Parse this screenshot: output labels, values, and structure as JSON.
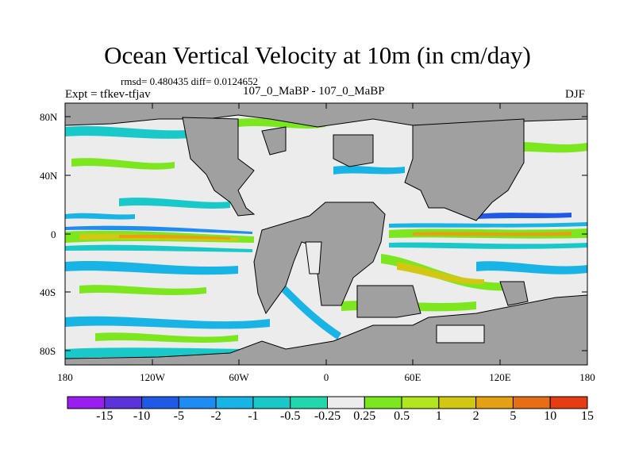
{
  "title": "Ocean Vertical Velocity at 10m (in cm/day)",
  "stats_line": "rmsd= 0.480435 diff= 0.0124652",
  "experiment_line": "Expt = tfkev-tfjav",
  "diff_label": "107_0_MaBP - 107_0_MaBP",
  "season": "DJF",
  "lat_ticks": [
    "80N",
    "40N",
    "0",
    "40S",
    "80S"
  ],
  "lon_ticks": [
    "180",
    "120W",
    "60W",
    "0",
    "60E",
    "120E",
    "180"
  ],
  "colorbar": {
    "labels": [
      "-15",
      "-10",
      "-5",
      "-2",
      "-1",
      "-0.5",
      "-0.25",
      "0.25",
      "0.5",
      "1",
      "2",
      "5",
      "10",
      "15"
    ],
    "colors": [
      "#9a1ef0",
      "#5a34d8",
      "#1e5ae6",
      "#1e8cf0",
      "#19b4e6",
      "#19c8c8",
      "#22d7ad",
      "#ececec",
      "#7ce61e",
      "#b2e61e",
      "#d2c814",
      "#e6a014",
      "#e66e14",
      "#e63c14"
    ]
  },
  "colors": {
    "land": "#a0a0a0",
    "ocean_near_zero": "#ececec"
  }
}
